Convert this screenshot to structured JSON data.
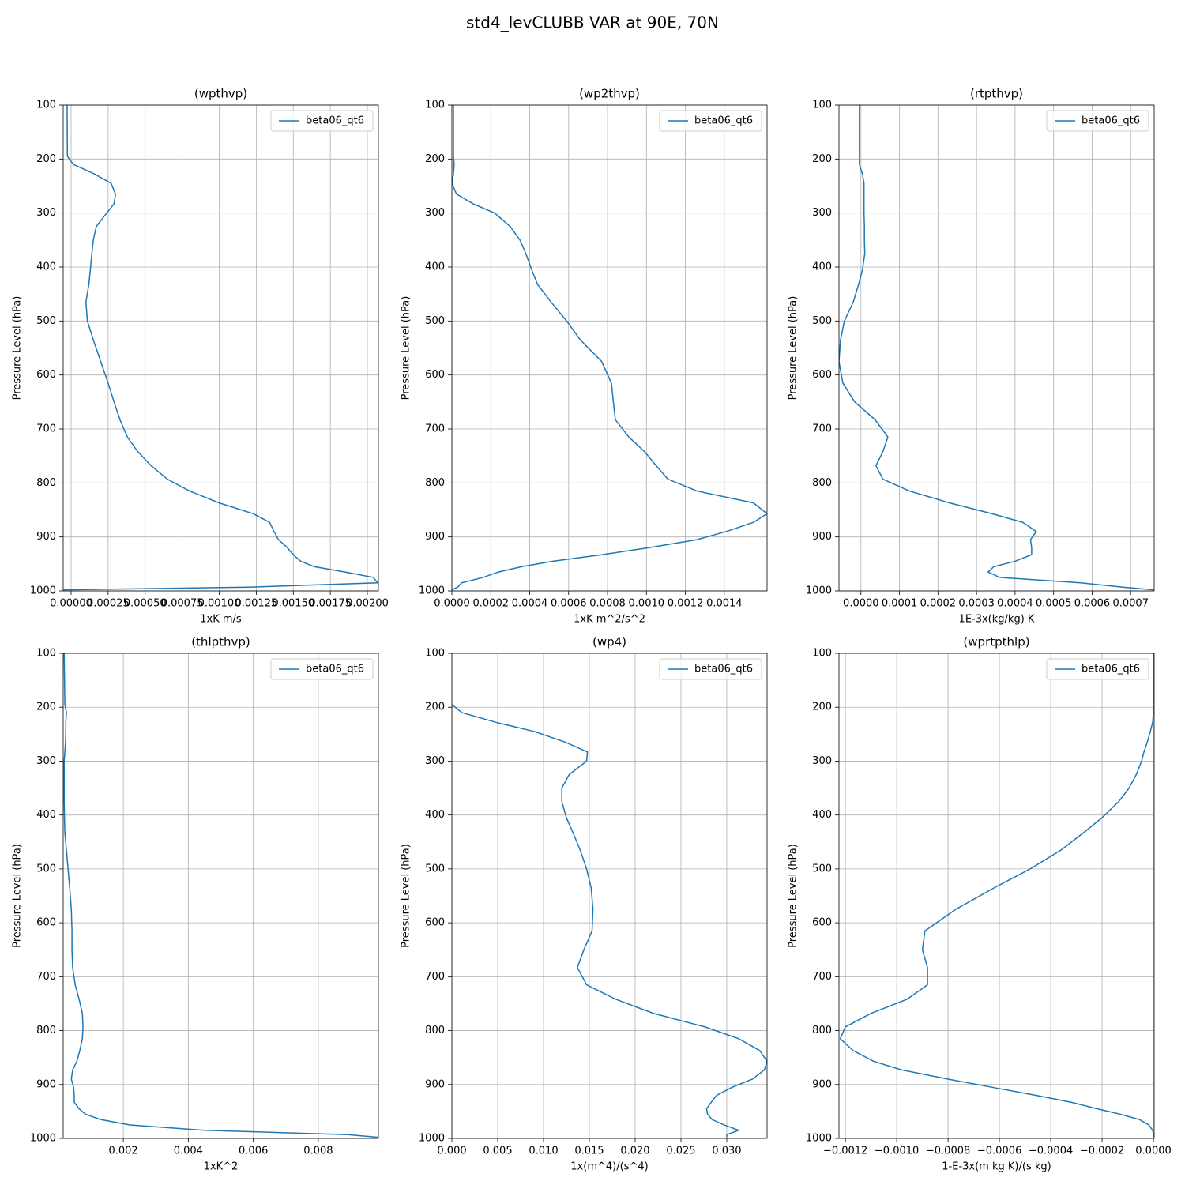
{
  "title": "std4_levCLUBB VAR at 90E, 70N",
  "chart_data": [
    {
      "type": "line",
      "title": "(wpthvp)",
      "xlabel": "1xK m/s",
      "ylabel": "Pressure Level (hPa)",
      "y": [
        100,
        195,
        210,
        228,
        245,
        265,
        283,
        300,
        325,
        350,
        375,
        405,
        432,
        465,
        500,
        535,
        575,
        615,
        650,
        683,
        715,
        742,
        768,
        793,
        815,
        837,
        857,
        873,
        890,
        905,
        920,
        933,
        945,
        955,
        965,
        975,
        985,
        993,
        998
      ],
      "series": [
        {
          "name": "beta06_qt6",
          "color": "#1f77b4",
          "values": [
            -2.7e-05,
            -2.5e-05,
            1.6e-05,
            0.00016,
            0.00027,
            0.0003,
            0.00029,
            0.00024,
            0.00017,
            0.00015,
            0.00014,
            0.00013,
            0.00012,
            0.0001,
            0.00011,
            0.00015,
            0.0002,
            0.00025,
            0.00029,
            0.00033,
            0.00038,
            0.00045,
            0.00054,
            0.00065,
            0.0008,
            0.001,
            0.00123,
            0.00134,
            0.00137,
            0.0014,
            0.00146,
            0.0015,
            0.00155,
            0.00164,
            0.00185,
            0.00204,
            0.00207,
            0.0012,
            -5e-05
          ]
        }
      ],
      "xlim": [
        -5.33e-05,
        0.0020746
      ],
      "ylim": [
        1000,
        100
      ],
      "xticks": [
        {
          "value": 0,
          "label": "0.00000"
        },
        {
          "value": 0.00025,
          "label": "0.00025"
        },
        {
          "value": 0.0005,
          "label": "0.00050"
        },
        {
          "value": 0.00075,
          "label": "0.00075"
        },
        {
          "value": 0.001,
          "label": "0.00100"
        },
        {
          "value": 0.00125,
          "label": "0.00125"
        },
        {
          "value": 0.0015,
          "label": "0.00150"
        },
        {
          "value": 0.00175,
          "label": "0.00175"
        },
        {
          "value": 0.002,
          "label": "0.00200"
        }
      ],
      "yticks": [
        100,
        200,
        300,
        400,
        500,
        600,
        700,
        800,
        900,
        1000
      ],
      "grid": true,
      "legend": "upper right"
    },
    {
      "type": "line",
      "title": "(wp2thvp)",
      "xlabel": "1xK m^2/s^2",
      "ylabel": "Pressure Level (hPa)",
      "y": [
        100,
        195,
        210,
        228,
        245,
        265,
        283,
        300,
        325,
        350,
        375,
        405,
        432,
        465,
        500,
        535,
        575,
        615,
        650,
        683,
        715,
        742,
        768,
        793,
        815,
        837,
        857,
        873,
        890,
        905,
        920,
        933,
        945,
        955,
        965,
        975,
        985,
        993,
        998
      ],
      "series": [
        {
          "name": "beta06_qt6",
          "color": "#1f77b4",
          "values": [
            8e-06,
            8e-06,
            1.2e-05,
            8e-06,
            0,
            2.4e-05,
            0.00011,
            0.00022,
            0.0003,
            0.00035,
            0.00038,
            0.00041,
            0.00044,
            0.00051,
            0.00059,
            0.00066,
            0.00077,
            0.00082,
            0.00083,
            0.00084,
            0.00091,
            0.00099,
            0.00105,
            0.00111,
            0.00126,
            0.00155,
            0.00162,
            0.00155,
            0.00141,
            0.00126,
            0.00101,
            0.00077,
            0.00052,
            0.00036,
            0.00024,
            0.00016,
            5e-05,
            3e-05,
            0
          ]
        }
      ],
      "xlim": [
        0,
        0.00162
      ],
      "ylim": [
        1000,
        100
      ],
      "xticks": [
        {
          "value": 0,
          "label": "0.0000"
        },
        {
          "value": 0.0002,
          "label": "0.0002"
        },
        {
          "value": 0.0004,
          "label": "0.0004"
        },
        {
          "value": 0.0006,
          "label": "0.0006"
        },
        {
          "value": 0.0008,
          "label": "0.0008"
        },
        {
          "value": 0.001,
          "label": "0.0010"
        },
        {
          "value": 0.0012,
          "label": "0.0012"
        },
        {
          "value": 0.0014,
          "label": "0.0014"
        }
      ],
      "yticks": [
        100,
        200,
        300,
        400,
        500,
        600,
        700,
        800,
        900,
        1000
      ],
      "grid": true,
      "legend": "upper right"
    },
    {
      "type": "line",
      "title": "(rtpthvp)",
      "xlabel": "1E-3x(kg/kg) K",
      "ylabel": "Pressure Level (hPa)",
      "y": [
        100,
        195,
        210,
        228,
        245,
        265,
        283,
        300,
        325,
        350,
        375,
        405,
        432,
        465,
        500,
        535,
        575,
        615,
        650,
        683,
        715,
        742,
        768,
        793,
        815,
        837,
        857,
        873,
        890,
        905,
        920,
        933,
        945,
        955,
        965,
        975,
        985,
        993,
        998
      ],
      "series": [
        {
          "name": "beta06_qt6",
          "color": "#1f77b4",
          "values": [
            -4e-06,
            -4e-06,
            -4e-06,
            4e-06,
            8e-06,
            8e-06,
            8e-06,
            8e-06,
            9e-06,
            9e-06,
            1e-05,
            4e-06,
            -6e-06,
            -2e-05,
            -4.3e-05,
            -5.3e-05,
            -5.7e-05,
            -4.7e-05,
            -1.6e-05,
            3.7e-05,
            7e-05,
            5.7e-05,
            3.9e-05,
            5.7e-05,
            0.000126,
            0.00023,
            0.00034,
            0.00042,
            0.000455,
            0.00044,
            0.000443,
            0.000443,
            0.0004,
            0.000345,
            0.00033,
            0.00036,
            0.00057,
            0.00068,
            0.00076
          ]
        }
      ],
      "xlim": [
        -5.7e-05,
        0.000761
      ],
      "ylim": [
        1000,
        100
      ],
      "xticks": [
        {
          "value": 0,
          "label": "0.0000"
        },
        {
          "value": 0.0001,
          "label": "0.0001"
        },
        {
          "value": 0.0002,
          "label": "0.0002"
        },
        {
          "value": 0.0003,
          "label": "0.0003"
        },
        {
          "value": 0.0004,
          "label": "0.0004"
        },
        {
          "value": 0.0005,
          "label": "0.0005"
        },
        {
          "value": 0.0006,
          "label": "0.0006"
        },
        {
          "value": 0.0007,
          "label": "0.0007"
        }
      ],
      "yticks": [
        100,
        200,
        300,
        400,
        500,
        600,
        700,
        800,
        900,
        1000
      ],
      "grid": true,
      "legend": "upper right"
    },
    {
      "type": "line",
      "title": "(thlpthvp)",
      "xlabel": "1xK^2",
      "ylabel": "Pressure Level (hPa)",
      "y": [
        100,
        195,
        210,
        228,
        245,
        265,
        283,
        300,
        325,
        350,
        375,
        405,
        432,
        465,
        500,
        535,
        575,
        615,
        650,
        683,
        715,
        742,
        768,
        793,
        815,
        837,
        857,
        873,
        890,
        905,
        920,
        933,
        945,
        955,
        965,
        975,
        985,
        993,
        998
      ],
      "series": [
        {
          "name": "beta06_qt6",
          "color": "#1f77b4",
          "values": [
            0.00018,
            0.0002,
            0.00025,
            0.00023,
            0.00023,
            0.00022,
            0.0002,
            0.00018,
            0.00018,
            0.00018,
            0.00018,
            0.00019,
            0.0002,
            0.00025,
            0.0003,
            0.00035,
            0.0004,
            0.00042,
            0.00042,
            0.00044,
            0.00052,
            0.00064,
            0.00074,
            0.00076,
            0.00074,
            0.00066,
            0.00057,
            0.00044,
            0.0004,
            0.00047,
            0.00049,
            0.00049,
            0.00064,
            0.00083,
            0.0013,
            0.0022,
            0.0045,
            0.0089,
            0.00985
          ]
        }
      ],
      "xlim": [
        0.00015,
        0.00985
      ],
      "ylim": [
        1000,
        100
      ],
      "xticks": [
        {
          "value": 0.002,
          "label": "0.002"
        },
        {
          "value": 0.004,
          "label": "0.004"
        },
        {
          "value": 0.006,
          "label": "0.006"
        },
        {
          "value": 0.008,
          "label": "0.008"
        }
      ],
      "yticks": [
        100,
        200,
        300,
        400,
        500,
        600,
        700,
        800,
        900,
        1000
      ],
      "grid": true,
      "legend": "upper right"
    },
    {
      "type": "line",
      "title": "(wp4)",
      "xlabel": "1x(m^4)/(s^4)",
      "ylabel": "Pressure Level (hPa)",
      "y": [
        100,
        195,
        210,
        228,
        245,
        265,
        283,
        300,
        325,
        350,
        375,
        405,
        432,
        465,
        500,
        535,
        575,
        615,
        650,
        683,
        715,
        742,
        768,
        793,
        815,
        837,
        857,
        873,
        890,
        905,
        920,
        933,
        945,
        955,
        965,
        975,
        985,
        993,
        998
      ],
      "series": [
        {
          "name": "beta06_qt6",
          "color": "#1f77b4",
          "values": [
            null,
            0,
            0.0011,
            0.0048,
            0.009,
            0.0124,
            0.0148,
            0.0147,
            0.0128,
            0.012,
            0.012,
            0.0125,
            0.0132,
            0.014,
            0.0147,
            0.0152,
            0.0154,
            0.0153,
            0.0144,
            0.0137,
            0.0147,
            0.0179,
            0.022,
            0.0276,
            0.0313,
            0.0336,
            0.0344,
            0.0341,
            0.0328,
            0.0306,
            0.0289,
            0.0283,
            0.0278,
            0.0279,
            0.0284,
            0.0297,
            0.0313,
            0.03,
            0.03
          ]
        }
      ],
      "xlim": [
        0,
        0.0344
      ],
      "ylim": [
        1000,
        100
      ],
      "xticks": [
        {
          "value": 0,
          "label": "0.000"
        },
        {
          "value": 0.005,
          "label": "0.005"
        },
        {
          "value": 0.01,
          "label": "0.010"
        },
        {
          "value": 0.015,
          "label": "0.015"
        },
        {
          "value": 0.02,
          "label": "0.020"
        },
        {
          "value": 0.025,
          "label": "0.025"
        },
        {
          "value": 0.03,
          "label": "0.030"
        }
      ],
      "yticks": [
        100,
        200,
        300,
        400,
        500,
        600,
        700,
        800,
        900,
        1000
      ],
      "grid": true,
      "legend": "upper right"
    },
    {
      "type": "line",
      "title": "(wprtpthlp)",
      "xlabel": "1-E-3x(m kg K)/(s kg)",
      "ylabel": "Pressure Level (hPa)",
      "y": [
        100,
        195,
        210,
        228,
        245,
        265,
        283,
        300,
        325,
        350,
        375,
        405,
        432,
        465,
        500,
        535,
        575,
        615,
        650,
        683,
        715,
        742,
        768,
        793,
        815,
        837,
        857,
        873,
        890,
        905,
        920,
        933,
        945,
        955,
        965,
        975,
        985,
        993,
        998
      ],
      "series": [
        {
          "name": "beta06_qt6",
          "color": "#1f77b4",
          "values": [
            0,
            0,
            0,
            -3e-06,
            -1.2e-05,
            -2.4e-05,
            -3.7e-05,
            -4.6e-05,
            -6.7e-05,
            -9.5e-05,
            -0.000135,
            -0.0002,
            -0.00027,
            -0.00036,
            -0.00048,
            -0.00062,
            -0.00077,
            -0.00089,
            -0.0009,
            -0.00088,
            -0.00088,
            -0.00096,
            -0.0011,
            -0.0012,
            -0.00122,
            -0.00117,
            -0.00109,
            -0.00098,
            -0.0008,
            -0.00063,
            -0.00046,
            -0.00032,
            -0.00022,
            -0.00013,
            -5.5e-05,
            -1.8e-05,
            -3e-06,
            0,
            0
          ]
        }
      ],
      "xlim": [
        -0.001225,
        3e-06
      ],
      "ylim": [
        1000,
        100
      ],
      "xticks": [
        {
          "value": -0.0012,
          "label": "−0.0012"
        },
        {
          "value": -0.001,
          "label": "−0.0010"
        },
        {
          "value": -0.0008,
          "label": "−0.0008"
        },
        {
          "value": -0.0006,
          "label": "−0.0006"
        },
        {
          "value": -0.0004,
          "label": "−0.0004"
        },
        {
          "value": -0.0002,
          "label": "−0.0002"
        },
        {
          "value": 0,
          "label": "0.0000"
        }
      ],
      "yticks": [
        100,
        200,
        300,
        400,
        500,
        600,
        700,
        800,
        900,
        1000
      ],
      "grid": true,
      "legend": "upper right"
    }
  ]
}
